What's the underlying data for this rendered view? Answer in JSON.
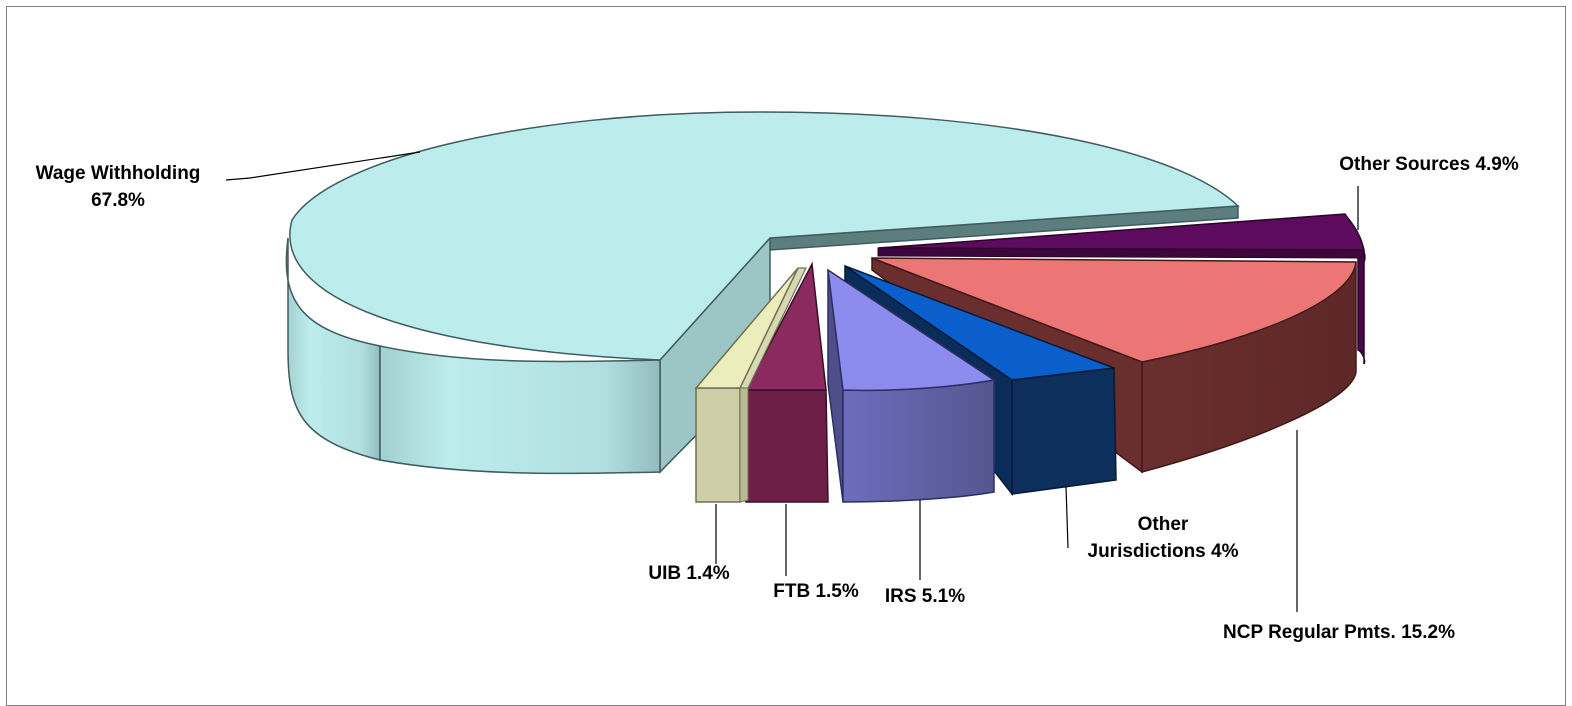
{
  "chart_data": {
    "type": "pie",
    "style": "3d-exploded",
    "title": "",
    "slices": [
      {
        "label": "Wage Withholding",
        "value": 67.8,
        "value_text": "67.8%",
        "color": "#bdeced",
        "side_color": "#a4cfd0",
        "edge_color": "#5d8a8d"
      },
      {
        "label": "Other Sources",
        "value": 4.9,
        "value_text": "4.9%",
        "color": "#5d0b5e",
        "side_color": "#4a0849",
        "edge_color": "#2a0329"
      },
      {
        "label": "NCP Regular Pmts.",
        "value": 15.2,
        "value_text": "15.2%",
        "color": "#ec7676",
        "side_color": "#6b2e2e",
        "edge_color": "#3f1818"
      },
      {
        "label": "Other Jurisdictions",
        "value": 4.0,
        "value_text": "4%",
        "color": "#0b5fcc",
        "side_color": "#0c2f5c",
        "edge_color": "#061a36"
      },
      {
        "label": "IRS",
        "value": 5.1,
        "value_text": "5.1%",
        "color": "#8c8cee",
        "side_color": "#5d5ea6",
        "edge_color": "#2e2f63"
      },
      {
        "label": "FTB",
        "value": 1.5,
        "value_text": "1.5%",
        "color": "#8b2a5e",
        "side_color": "#6e1f48",
        "edge_color": "#3a0f26"
      },
      {
        "label": "UIB",
        "value": 1.4,
        "value_text": "1.4%",
        "color": "#ecedbd",
        "side_color": "#cdcea5",
        "edge_color": "#707154"
      }
    ]
  },
  "labels": {
    "wage_line1": "Wage Withholding",
    "wage_line2": "67.8%",
    "other_sources": "Other Sources 4.9%",
    "ncp": "NCP Regular Pmts. 15.2%",
    "other_jur_line1": "Other",
    "other_jur_line2": "Jurisdictions 4%",
    "irs": "IRS 5.1%",
    "ftb": "FTB 1.5%",
    "uib": "UIB 1.4%"
  }
}
